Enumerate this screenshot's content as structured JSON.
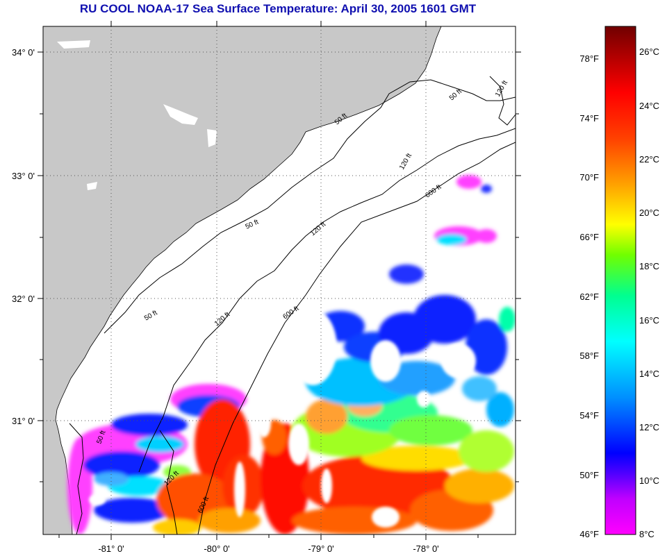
{
  "title": "RU COOL  NOAA-17  Sea Surface Temperature:  April 30, 2005 1601 GMT",
  "latitude_labels": [
    "34° 0'",
    "33° 0'",
    "32° 0'",
    "31° 0'"
  ],
  "longitude_labels": [
    "-81° 0'",
    "-80° 0'",
    "-79° 0'",
    "-78° 0'"
  ],
  "contour_labels": [
    "50 ft",
    "50 ft",
    "50 ft",
    "50 ft",
    "50 ft",
    "120 ft",
    "120 ft",
    "120 ft",
    "120 ft",
    "120 ft",
    "600 ft",
    "600 ft",
    "600 ft"
  ],
  "colorbar": {
    "fahrenheit_labels": [
      "78°F",
      "74°F",
      "70°F",
      "66°F",
      "62°F",
      "58°F",
      "54°F",
      "50°F",
      "46°F"
    ],
    "celsius_labels": [
      "26°C",
      "24°C",
      "22°C",
      "20°C",
      "18°C",
      "16°C",
      "14°C",
      "12°C",
      "10°C",
      "8°C"
    ]
  },
  "colors": {
    "land": "#c8c8c8",
    "title": "#1010b0",
    "scale": [
      "#ff00ff",
      "#7a00ff",
      "#0000ff",
      "#0090ff",
      "#00ffff",
      "#00ff80",
      "#70ff00",
      "#ffff00",
      "#ffa000",
      "#ff4000",
      "#ff0000",
      "#a00000",
      "#700000"
    ]
  }
}
